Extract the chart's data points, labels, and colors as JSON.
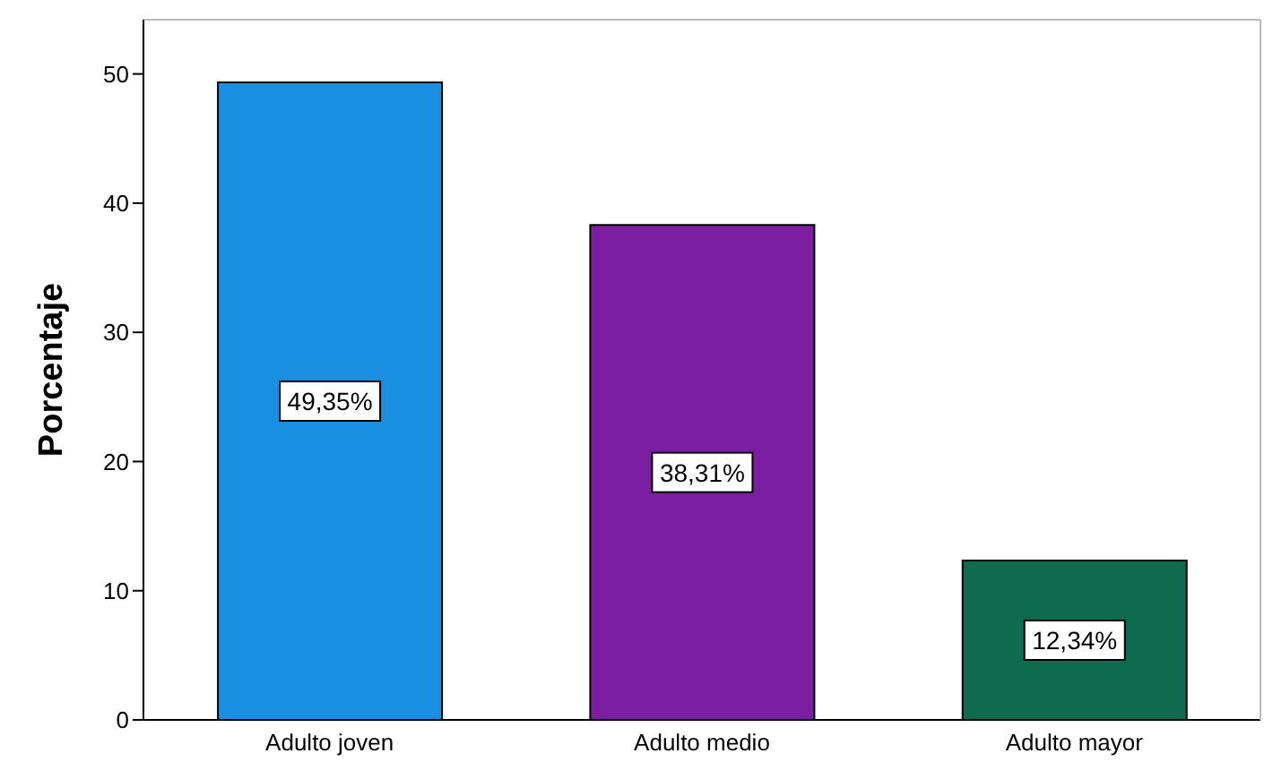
{
  "chart_data": {
    "type": "bar",
    "ylabel": "Porcentaje",
    "categories": [
      "Adulto joven",
      "Adulto medio",
      "Adulto mayor"
    ],
    "values": [
      49.35,
      38.31,
      12.34
    ],
    "colors": [
      "#1a8ee0",
      "#7b1fa0",
      "#0e6b4f"
    ],
    "value_labels": [
      "49,35%",
      "38,31%",
      "12,34%"
    ],
    "ylim": [
      0,
      54.2
    ],
    "yticks": [
      0,
      10,
      20,
      30,
      40,
      50
    ],
    "grid": false,
    "legend": false
  }
}
